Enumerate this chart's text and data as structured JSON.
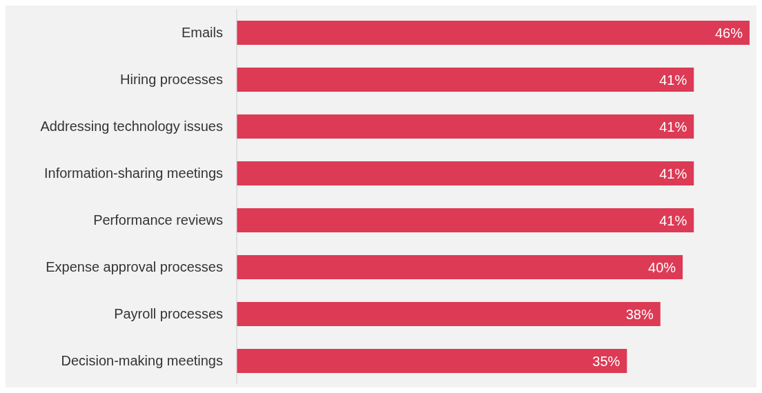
{
  "chart_data": {
    "type": "bar",
    "orientation": "horizontal",
    "categories": [
      "Emails",
      "Hiring processes",
      "Addressing technology issues",
      "Information-sharing meetings",
      "Performance reviews",
      "Expense approval processes",
      "Payroll processes",
      "Decision-making meetings"
    ],
    "values": [
      46,
      41,
      41,
      41,
      41,
      40,
      38,
      35
    ],
    "value_labels": [
      "46%",
      "41%",
      "41%",
      "41%",
      "41%",
      "40%",
      "38%",
      "35%"
    ],
    "color": "#dc3a55"
  }
}
